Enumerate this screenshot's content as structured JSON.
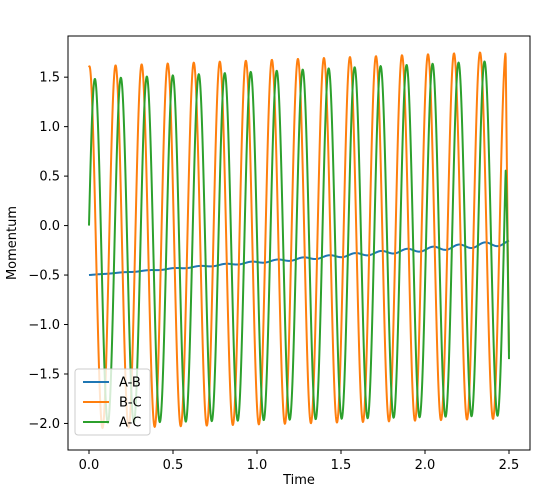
{
  "chart_data": {
    "type": "line",
    "title": "",
    "xlabel": "Time",
    "ylabel": "Momentum",
    "xlim": [
      -0.125,
      2.625
    ],
    "ylim": [
      -2.2683,
      1.9161
    ],
    "xticks": [
      0.0,
      0.5,
      1.0,
      1.5,
      2.0,
      2.5
    ],
    "xtick_labels": [
      "0.0",
      "0.5",
      "1.0",
      "1.5",
      "2.0",
      "2.5"
    ],
    "yticks": [
      -2.0,
      -1.5,
      -1.0,
      -0.5,
      0.0,
      0.5,
      1.0,
      1.5
    ],
    "ytick_labels": [
      "−2.0",
      "−1.5",
      "−1.0",
      "−0.5",
      "0.0",
      "0.5",
      "1.0",
      "1.5"
    ],
    "grid": false,
    "legend_position": "lower-left",
    "x_range": [
      0.0,
      2.5
    ],
    "oscillation_period": 0.1545,
    "series": [
      {
        "name": "A-B",
        "color": "#1f77b4",
        "start": -0.5,
        "end": -0.175,
        "ripple_amplitude_end": 0.025
      },
      {
        "name": "B-C",
        "color": "#ff7f0e",
        "start": 1.6,
        "peak_max_start": 1.61,
        "peak_max_end": 1.76,
        "trough_min_start": -2.05,
        "trough_min_end": -1.95,
        "end": -1.28
      },
      {
        "name": "A-C",
        "color": "#2ca02c",
        "start": 0.0,
        "peak_max_start": 1.48,
        "peak_max_end": 1.67,
        "trough_min_start": -2.0,
        "trough_min_end": -1.92,
        "end": -1.35
      }
    ]
  }
}
